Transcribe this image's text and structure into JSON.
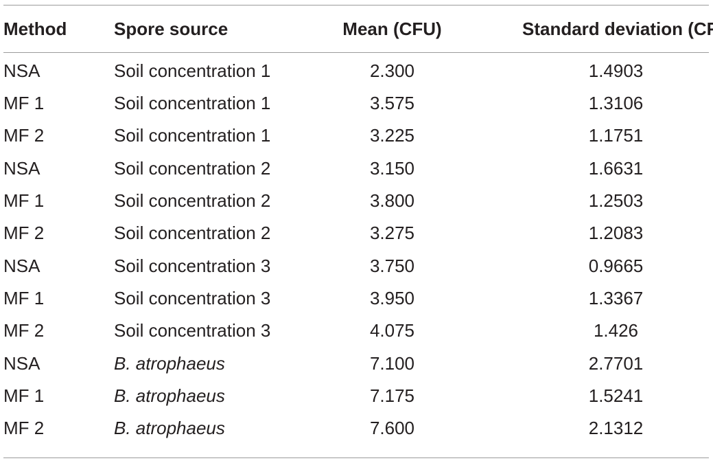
{
  "table": {
    "headers": {
      "method": "Method",
      "source": "Spore source",
      "mean": "Mean (CFU)",
      "sd": "Standard deviation (CFU)"
    },
    "rows": [
      {
        "method": "NSA",
        "source": "Soil concentration 1",
        "mean": "2.300",
        "sd": "1.4903",
        "italic": false
      },
      {
        "method": "MF 1",
        "source": "Soil concentration 1",
        "mean": "3.575",
        "sd": "1.3106",
        "italic": false
      },
      {
        "method": "MF 2",
        "source": "Soil concentration 1",
        "mean": "3.225",
        "sd": "1.1751",
        "italic": false
      },
      {
        "method": "NSA",
        "source": "Soil concentration 2",
        "mean": "3.150",
        "sd": "1.6631",
        "italic": false
      },
      {
        "method": "MF 1",
        "source": "Soil concentration 2",
        "mean": "3.800",
        "sd": "1.2503",
        "italic": false
      },
      {
        "method": "MF 2",
        "source": "Soil concentration 2",
        "mean": "3.275",
        "sd": "1.2083",
        "italic": false
      },
      {
        "method": "NSA",
        "source": "Soil concentration 3",
        "mean": "3.750",
        "sd": "0.9665",
        "italic": false
      },
      {
        "method": "MF 1",
        "source": "Soil concentration 3",
        "mean": "3.950",
        "sd": "1.3367",
        "italic": false
      },
      {
        "method": "MF 2",
        "source": "Soil concentration 3",
        "mean": "4.075",
        "sd": "1.426",
        "italic": false
      },
      {
        "method": "NSA",
        "source": "B. atrophaeus",
        "mean": "7.100",
        "sd": "2.7701",
        "italic": true
      },
      {
        "method": "MF 1",
        "source": "B. atrophaeus",
        "mean": "7.175",
        "sd": "1.5241",
        "italic": true
      },
      {
        "method": "MF 2",
        "source": "B. atrophaeus",
        "mean": "7.600",
        "sd": "2.1312",
        "italic": true
      }
    ]
  },
  "colors": {
    "text": "#231f20",
    "rule": "#9a9a9a",
    "background": "#ffffff"
  }
}
